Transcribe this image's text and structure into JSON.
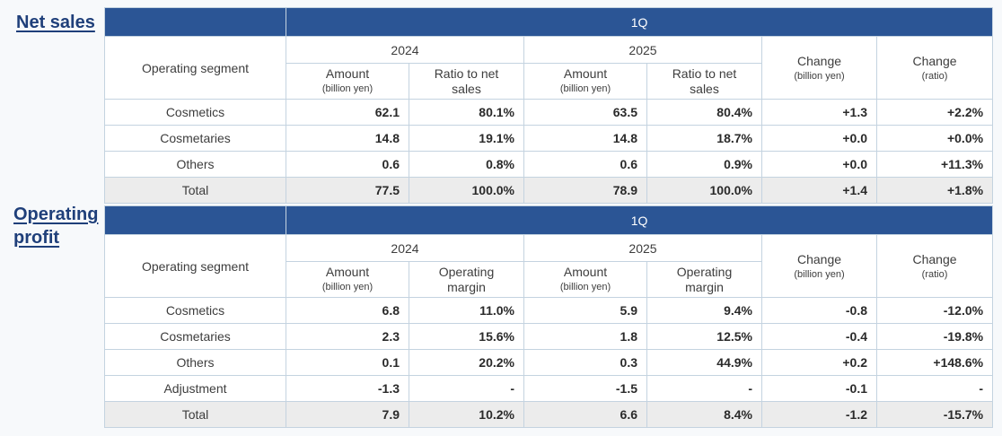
{
  "net_sales": {
    "title": "Net sales",
    "period": "1Q",
    "segment_header": "Operating segment",
    "years": [
      "2024",
      "2025"
    ],
    "amount_label": "Amount",
    "unit_label": "(billion yen)",
    "ratio_label_line1": "Ratio to net",
    "ratio_label_line2": "sales",
    "change_label": "Change",
    "change_abs_unit": "(billion yen)",
    "change_ratio_unit": "(ratio)",
    "rows": [
      {
        "segment": "Cosmetics",
        "amt_2024": "62.1",
        "ratio_2024": "80.1%",
        "amt_2025": "63.5",
        "ratio_2025": "80.4%",
        "change_abs": "+1.3",
        "change_ratio": "+2.2%"
      },
      {
        "segment": "Cosmetaries",
        "amt_2024": "14.8",
        "ratio_2024": "19.1%",
        "amt_2025": "14.8",
        "ratio_2025": "18.7%",
        "change_abs": "+0.0",
        "change_ratio": "+0.0%"
      },
      {
        "segment": "Others",
        "amt_2024": "0.6",
        "ratio_2024": "0.8%",
        "amt_2025": "0.6",
        "ratio_2025": "0.9%",
        "change_abs": "+0.0",
        "change_ratio": "+11.3%"
      },
      {
        "segment": "Total",
        "amt_2024": "77.5",
        "ratio_2024": "100.0%",
        "amt_2025": "78.9",
        "ratio_2025": "100.0%",
        "change_abs": "+1.4",
        "change_ratio": "+1.8%"
      }
    ]
  },
  "operating_profit": {
    "title_line1": "Operating",
    "title_line2": "profit",
    "period": "1Q",
    "segment_header": "Operating segment",
    "years": [
      "2024",
      "2025"
    ],
    "amount_label": "Amount",
    "unit_label": "(billion yen)",
    "margin_label_line1": "Operating",
    "margin_label_line2": "margin",
    "change_label": "Change",
    "change_abs_unit": "(billion yen)",
    "change_ratio_unit": "(ratio)",
    "rows": [
      {
        "segment": "Cosmetics",
        "amt_2024": "6.8",
        "margin_2024": "11.0%",
        "amt_2025": "5.9",
        "margin_2025": "9.4%",
        "change_abs": "-0.8",
        "change_ratio": "-12.0%"
      },
      {
        "segment": "Cosmetaries",
        "amt_2024": "2.3",
        "margin_2024": "15.6%",
        "amt_2025": "1.8",
        "margin_2025": "12.5%",
        "change_abs": "-0.4",
        "change_ratio": "-19.8%"
      },
      {
        "segment": "Others",
        "amt_2024": "0.1",
        "margin_2024": "20.2%",
        "amt_2025": "0.3",
        "margin_2025": "44.9%",
        "change_abs": "+0.2",
        "change_ratio": "+148.6%"
      },
      {
        "segment": "Adjustment",
        "amt_2024": "-1.3",
        "margin_2024": "-",
        "amt_2025": "-1.5",
        "margin_2025": "-",
        "change_abs": "-0.1",
        "change_ratio": "-"
      },
      {
        "segment": "Total",
        "amt_2024": "7.9",
        "margin_2024": "10.2%",
        "amt_2025": "6.6",
        "margin_2025": "8.4%",
        "change_abs": "-1.2",
        "change_ratio": "-15.7%"
      }
    ]
  }
}
